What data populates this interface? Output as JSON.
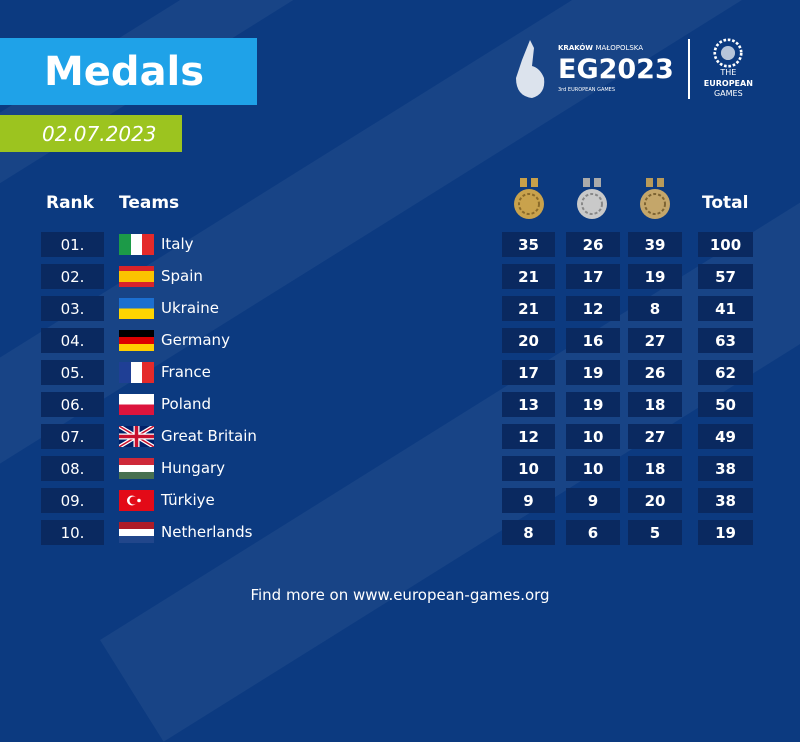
{
  "title": "Medals",
  "date": "02.07.2023",
  "logo": {
    "line1a": "KRAKÓW",
    "line1b": "MAŁOPOLSKA",
    "main": "EG2023",
    "line3": "3rd EUROPEAN GAMES",
    "eg_line1": "THE",
    "eg_line2": "EUROPEAN",
    "eg_line3": "GAMES"
  },
  "headers": {
    "rank": "Rank",
    "teams": "Teams",
    "total": "Total"
  },
  "medal_icons": [
    "gold-medal-icon",
    "silver-medal-icon",
    "bronze-medal-icon"
  ],
  "rows": [
    {
      "rank": "01.",
      "team": "Italy",
      "gold": "35",
      "silver": "26",
      "bronze": "39",
      "total": "100"
    },
    {
      "rank": "02.",
      "team": "Spain",
      "gold": "21",
      "silver": "17",
      "bronze": "19",
      "total": "57"
    },
    {
      "rank": "03.",
      "team": "Ukraine",
      "gold": "21",
      "silver": "12",
      "bronze": "8",
      "total": "41"
    },
    {
      "rank": "04.",
      "team": "Germany",
      "gold": "20",
      "silver": "16",
      "bronze": "27",
      "total": "63"
    },
    {
      "rank": "05.",
      "team": "France",
      "gold": "17",
      "silver": "19",
      "bronze": "26",
      "total": "62"
    },
    {
      "rank": "06.",
      "team": "Poland",
      "gold": "13",
      "silver": "19",
      "bronze": "18",
      "total": "50"
    },
    {
      "rank": "07.",
      "team": "Great Britain",
      "gold": "12",
      "silver": "10",
      "bronze": "27",
      "total": "49"
    },
    {
      "rank": "08.",
      "team": "Hungary",
      "gold": "10",
      "silver": "10",
      "bronze": "18",
      "total": "38"
    },
    {
      "rank": "09.",
      "team": "Türkiye",
      "gold": "9",
      "silver": "9",
      "bronze": "20",
      "total": "38"
    },
    {
      "rank": "10.",
      "team": "Netherlands",
      "gold": "8",
      "silver": "6",
      "bronze": "5",
      "total": "19"
    }
  ],
  "footer": "Find more on www.european-games.org",
  "colors": {
    "background": "#0c3a80",
    "title_bg": "#1fa2e8",
    "date_bg": "#9cc41f",
    "cell_bg": "#0a2960"
  }
}
